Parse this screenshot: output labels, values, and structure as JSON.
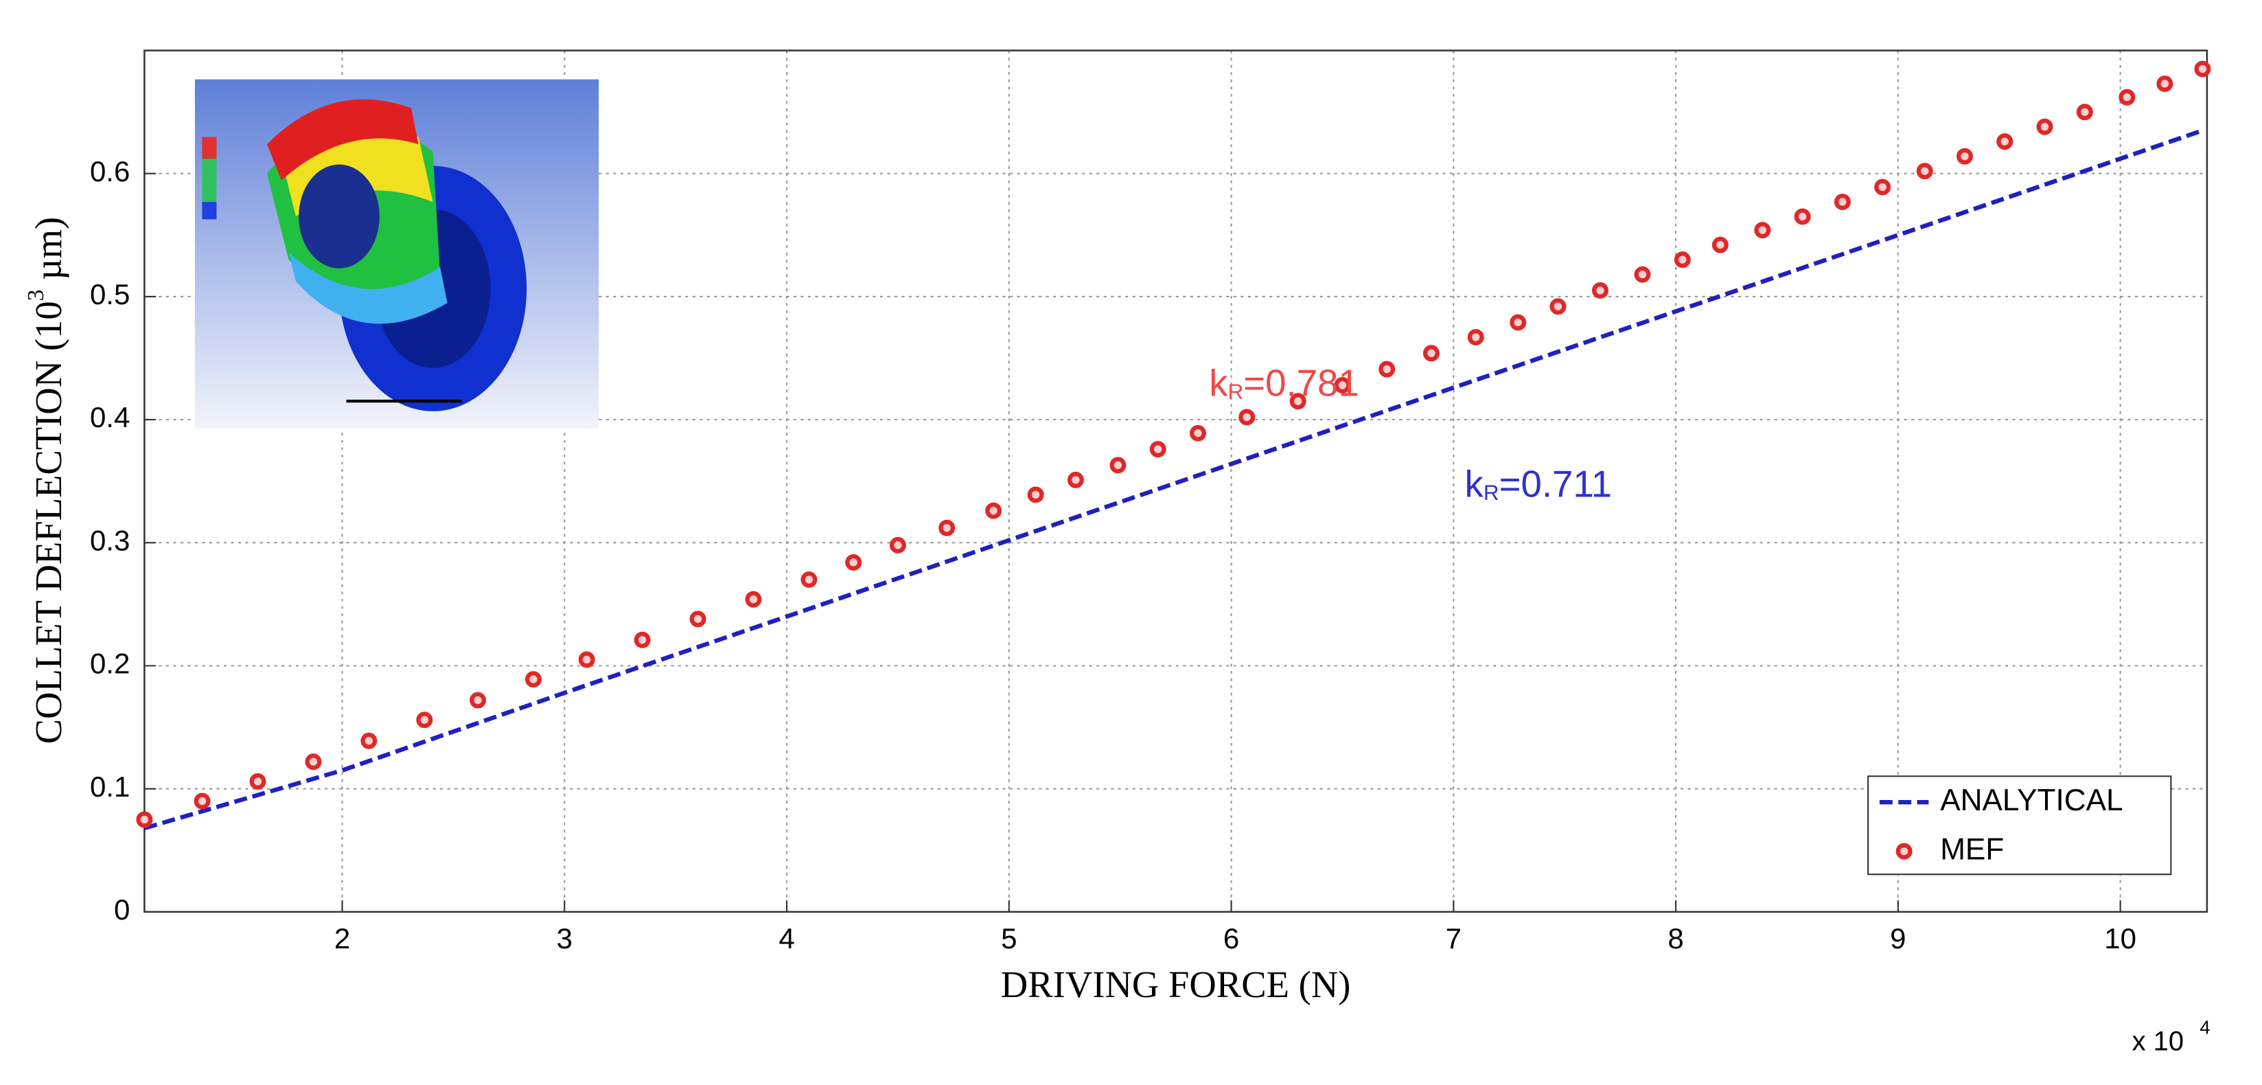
{
  "chart_data": {
    "type": "line",
    "x_label": "DRIVING FORCE (N)",
    "y_label": "COLLET DEFLECTION (10",
    "y_label_exp": "3",
    "y_label_unit": " µm)",
    "x_multiplier": "x 10",
    "x_multiplier_exp": "4",
    "xlim": [
      1.11,
      10.39
    ],
    "ylim": [
      0,
      0.7
    ],
    "xticks": [
      2,
      3,
      4,
      5,
      6,
      7,
      8,
      9,
      10
    ],
    "yticks": [
      0,
      0.1,
      0.2,
      0.3,
      0.4,
      0.5,
      0.6
    ],
    "grid": true,
    "legend": "lower right",
    "series": [
      {
        "name": "ANALYTICAL",
        "color": "#2020c0",
        "style": "dashed",
        "x": [
          1.11,
          2,
          3,
          4,
          5,
          6,
          7,
          8,
          9,
          10.37
        ],
        "values": [
          0.068,
          0.115,
          0.178,
          0.24,
          0.302,
          0.364,
          0.426,
          0.488,
          0.55,
          0.635
        ]
      },
      {
        "name": "MEF",
        "color": "#e02828",
        "style": "markers",
        "x": [
          1.11,
          1.37,
          1.62,
          1.87,
          2.12,
          2.37,
          2.61,
          2.86,
          3.1,
          3.35,
          3.6,
          3.85,
          4.1,
          4.3,
          4.5,
          4.72,
          4.93,
          5.12,
          5.3,
          5.49,
          5.67,
          5.85,
          6.07,
          6.3,
          6.5,
          6.7,
          6.9,
          7.1,
          7.29,
          7.47,
          7.66,
          7.85,
          8.03,
          8.2,
          8.39,
          8.57,
          8.75,
          8.93,
          9.12,
          9.3,
          9.48,
          9.66,
          9.84,
          10.03,
          10.2,
          10.37
        ],
        "values": [
          0.075,
          0.09,
          0.106,
          0.122,
          0.139,
          0.156,
          0.172,
          0.189,
          0.205,
          0.221,
          0.238,
          0.254,
          0.27,
          0.284,
          0.298,
          0.312,
          0.326,
          0.339,
          0.351,
          0.363,
          0.376,
          0.389,
          0.402,
          0.415,
          0.428,
          0.441,
          0.454,
          0.467,
          0.479,
          0.492,
          0.505,
          0.518,
          0.53,
          0.542,
          0.554,
          0.565,
          0.577,
          0.589,
          0.602,
          0.614,
          0.626,
          0.638,
          0.65,
          0.662,
          0.673,
          0.685
        ]
      }
    ],
    "annotations": [
      {
        "text": "k",
        "sub": "R",
        "rest": "=0.781",
        "color": "#f04848",
        "x": 5.9,
        "y": 0.427
      },
      {
        "text": "k",
        "sub": "R",
        "rest": "=0.711",
        "color": "#3030d0",
        "x": 7.05,
        "y": 0.345
      }
    ]
  }
}
